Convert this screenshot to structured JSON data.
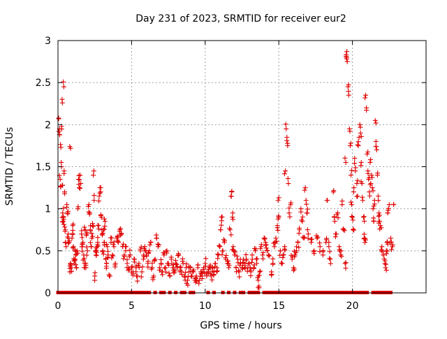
{
  "chart_data": {
    "type": "scatter",
    "title": "Day 231 of 2023, SRMTID for receiver eur2",
    "xlabel": "GPS time / hours",
    "ylabel": "SRMTID / TECUs",
    "xlim": [
      0,
      25
    ],
    "ylim": [
      0,
      3
    ],
    "xticks": [
      0,
      5,
      10,
      15,
      20
    ],
    "xtick_labels": [
      "0",
      "5",
      "10",
      "15",
      "20"
    ],
    "yticks": [
      0,
      0.5,
      1,
      1.5,
      2,
      2.5,
      3
    ],
    "ytick_labels": [
      "0",
      "0.5",
      "1",
      "1.5",
      "2",
      "2.5",
      "3"
    ],
    "grid": true,
    "marker": "+",
    "color": "#e00000",
    "series": [
      {
        "name": "eur2",
        "points": [
          [
            0.05,
            2.07
          ],
          [
            0.1,
            1.95
          ],
          [
            0.12,
            1.88
          ],
          [
            0.15,
            1.35
          ],
          [
            0.18,
            1.27
          ],
          [
            0.2,
            1.73
          ],
          [
            0.22,
            1.55
          ],
          [
            0.25,
            1.98
          ],
          [
            0.28,
            2.3
          ],
          [
            0.3,
            1.28
          ],
          [
            0.32,
            0.95
          ],
          [
            0.35,
            0.85
          ],
          [
            0.38,
            0.9
          ],
          [
            0.4,
            2.45
          ],
          [
            0.42,
            1.45
          ],
          [
            0.45,
            1.2
          ],
          [
            0.5,
            0.75
          ],
          [
            0.55,
            0.55
          ],
          [
            0.6,
            1.05
          ],
          [
            0.65,
            0.95
          ],
          [
            0.7,
            0.7
          ],
          [
            0.75,
            0.6
          ],
          [
            0.8,
            1.74
          ],
          [
            0.82,
            0.25
          ],
          [
            0.85,
            0.35
          ],
          [
            0.9,
            0.3
          ],
          [
            0.95,
            0.65
          ],
          [
            1.0,
            0.8
          ],
          [
            1.05,
            0.55
          ],
          [
            1.1,
            0.35
          ],
          [
            1.15,
            0.4
          ],
          [
            1.2,
            0.45
          ],
          [
            1.25,
            0.3
          ],
          [
            1.3,
            0.5
          ],
          [
            1.35,
            1.0
          ],
          [
            1.4,
            1.35
          ],
          [
            1.45,
            1.25
          ],
          [
            1.5,
            1.4
          ],
          [
            1.55,
            1.3
          ],
          [
            1.6,
            0.7
          ],
          [
            1.65,
            0.55
          ],
          [
            1.7,
            0.6
          ],
          [
            1.75,
            0.45
          ],
          [
            1.8,
            0.35
          ],
          [
            1.85,
            0.75
          ],
          [
            1.9,
            0.3
          ],
          [
            1.95,
            0.7
          ],
          [
            2.0,
            0.5
          ],
          [
            2.1,
            1.05
          ],
          [
            2.15,
            0.95
          ],
          [
            2.2,
            0.75
          ],
          [
            2.25,
            0.55
          ],
          [
            2.3,
            0.65
          ],
          [
            2.35,
            0.8
          ],
          [
            2.4,
            1.4
          ],
          [
            2.45,
            1.1
          ],
          [
            2.5,
            0.2
          ],
          [
            2.55,
            0.5
          ],
          [
            2.6,
            0.45
          ],
          [
            2.65,
            0.55
          ],
          [
            2.7,
            0.6
          ],
          [
            2.75,
            0.8
          ],
          [
            2.8,
            1.15
          ],
          [
            2.85,
            1.25
          ],
          [
            2.9,
            1.2
          ],
          [
            2.95,
            0.9
          ],
          [
            3.0,
            0.7
          ],
          [
            3.05,
            0.5
          ],
          [
            3.1,
            0.75
          ],
          [
            3.15,
            0.6
          ],
          [
            3.2,
            0.85
          ],
          [
            3.25,
            0.4
          ],
          [
            3.3,
            0.35
          ],
          [
            3.35,
            0.55
          ],
          [
            3.4,
            0.45
          ],
          [
            3.5,
            0.2
          ],
          [
            3.6,
            0.6
          ],
          [
            3.7,
            0.45
          ],
          [
            3.8,
            0.55
          ],
          [
            3.9,
            0.35
          ],
          [
            4.0,
            0.65
          ],
          [
            4.1,
            0.6
          ],
          [
            4.2,
            0.75
          ],
          [
            4.3,
            0.7
          ],
          [
            4.4,
            0.55
          ],
          [
            4.5,
            0.45
          ],
          [
            4.6,
            0.5
          ],
          [
            4.7,
            0.35
          ],
          [
            4.8,
            0.3
          ],
          [
            4.9,
            0.45
          ],
          [
            5.0,
            0.3
          ],
          [
            5.1,
            0.25
          ],
          [
            5.2,
            0.4
          ],
          [
            5.3,
            0.3
          ],
          [
            5.4,
            0.2
          ],
          [
            5.5,
            0.35
          ],
          [
            5.6,
            0.5
          ],
          [
            5.7,
            0.25
          ],
          [
            5.8,
            0.4
          ],
          [
            5.9,
            0.55
          ],
          [
            6.0,
            0.45
          ],
          [
            6.1,
            0.35
          ],
          [
            6.2,
            0.5
          ],
          [
            6.3,
            0.6
          ],
          [
            6.4,
            0.3
          ],
          [
            6.5,
            0.2
          ],
          [
            6.6,
            0.4
          ],
          [
            6.7,
            0.65
          ],
          [
            6.8,
            0.55
          ],
          [
            6.9,
            0.3
          ],
          [
            7.0,
            0.35
          ],
          [
            7.1,
            0.25
          ],
          [
            7.2,
            0.45
          ],
          [
            7.3,
            0.3
          ],
          [
            7.4,
            0.5
          ],
          [
            7.5,
            0.35
          ],
          [
            7.6,
            0.2
          ],
          [
            7.7,
            0.4
          ],
          [
            7.8,
            0.3
          ],
          [
            7.9,
            0.25
          ],
          [
            8.0,
            0.35
          ],
          [
            8.1,
            0.3
          ],
          [
            8.2,
            0.45
          ],
          [
            8.3,
            0.3
          ],
          [
            8.4,
            0.25
          ],
          [
            8.5,
            0.35
          ],
          [
            8.6,
            0.2
          ],
          [
            8.7,
            0.3
          ],
          [
            8.8,
            0.15
          ],
          [
            8.9,
            0.25
          ],
          [
            9.0,
            0.3
          ],
          [
            9.1,
            0.2
          ],
          [
            9.2,
            0.25
          ],
          [
            9.3,
            0.15
          ],
          [
            9.4,
            0.2
          ],
          [
            9.5,
            0.3
          ],
          [
            9.6,
            0.15
          ],
          [
            9.7,
            0.25
          ],
          [
            9.8,
            0.2
          ],
          [
            9.9,
            0.3
          ],
          [
            10.0,
            0.35
          ],
          [
            10.1,
            0.2
          ],
          [
            10.2,
            0.25
          ],
          [
            10.3,
            0.3
          ],
          [
            10.4,
            0.2
          ],
          [
            10.5,
            0.3
          ],
          [
            10.6,
            0.25
          ],
          [
            10.7,
            0.35
          ],
          [
            10.8,
            0.3
          ],
          [
            10.9,
            0.45
          ],
          [
            11.0,
            0.55
          ],
          [
            11.05,
            0.75
          ],
          [
            11.1,
            0.9
          ],
          [
            11.2,
            0.5
          ],
          [
            11.3,
            0.6
          ],
          [
            11.4,
            0.4
          ],
          [
            11.5,
            0.35
          ],
          [
            11.6,
            0.3
          ],
          [
            11.7,
            0.75
          ],
          [
            11.75,
            1.15
          ],
          [
            11.8,
            1.2
          ],
          [
            11.85,
            0.9
          ],
          [
            11.9,
            0.55
          ],
          [
            12.0,
            0.45
          ],
          [
            12.1,
            0.3
          ],
          [
            12.2,
            0.4
          ],
          [
            12.3,
            0.25
          ],
          [
            12.4,
            0.35
          ],
          [
            12.5,
            0.3
          ],
          [
            12.6,
            0.4
          ],
          [
            12.7,
            0.35
          ],
          [
            12.8,
            0.4
          ],
          [
            12.9,
            0.3
          ],
          [
            13.0,
            0.35
          ],
          [
            13.1,
            0.25
          ],
          [
            13.2,
            0.4
          ],
          [
            13.3,
            0.3
          ],
          [
            13.4,
            0.5
          ],
          [
            13.5,
            0.35
          ],
          [
            13.6,
            0.15
          ],
          [
            13.65,
            0.08
          ],
          [
            13.7,
            0.25
          ],
          [
            13.8,
            0.55
          ],
          [
            13.9,
            0.45
          ],
          [
            14.0,
            0.65
          ],
          [
            14.1,
            0.6
          ],
          [
            14.2,
            0.5
          ],
          [
            14.3,
            0.45
          ],
          [
            14.5,
            0.25
          ],
          [
            14.6,
            0.35
          ],
          [
            14.7,
            0.55
          ],
          [
            14.8,
            0.65
          ],
          [
            14.9,
            0.8
          ],
          [
            14.95,
            1.1
          ],
          [
            15.0,
            0.9
          ],
          [
            15.1,
            0.5
          ],
          [
            15.2,
            0.35
          ],
          [
            15.3,
            0.45
          ],
          [
            15.4,
            0.55
          ],
          [
            15.45,
            1.45
          ],
          [
            15.5,
            1.95
          ],
          [
            15.55,
            1.85
          ],
          [
            15.6,
            1.75
          ],
          [
            15.65,
            1.3
          ],
          [
            15.7,
            0.95
          ],
          [
            15.8,
            1.05
          ],
          [
            15.9,
            0.4
          ],
          [
            16.0,
            0.3
          ],
          [
            16.1,
            0.45
          ],
          [
            16.2,
            0.5
          ],
          [
            16.3,
            0.6
          ],
          [
            16.4,
            0.75
          ],
          [
            16.5,
            1.0
          ],
          [
            16.6,
            0.85
          ],
          [
            16.7,
            0.65
          ],
          [
            16.8,
            1.25
          ],
          [
            16.85,
            1.1
          ],
          [
            16.9,
            0.95
          ],
          [
            17.0,
            0.7
          ],
          [
            17.2,
            0.6
          ],
          [
            17.4,
            0.5
          ],
          [
            17.6,
            0.65
          ],
          [
            17.8,
            0.55
          ],
          [
            18.0,
            0.45
          ],
          [
            18.2,
            0.6
          ],
          [
            18.3,
            1.1
          ],
          [
            18.4,
            0.55
          ],
          [
            18.5,
            0.4
          ],
          [
            18.7,
            1.2
          ],
          [
            18.8,
            0.85
          ],
          [
            18.9,
            0.7
          ],
          [
            19.0,
            0.95
          ],
          [
            19.1,
            0.55
          ],
          [
            19.2,
            0.45
          ],
          [
            19.3,
            1.05
          ],
          [
            19.4,
            0.75
          ],
          [
            19.5,
            0.35
          ],
          [
            19.55,
            1.55
          ],
          [
            19.6,
            2.8
          ],
          [
            19.62,
            2.87
          ],
          [
            19.65,
            2.75
          ],
          [
            19.7,
            2.45
          ],
          [
            19.75,
            2.35
          ],
          [
            19.8,
            1.95
          ],
          [
            19.85,
            1.75
          ],
          [
            19.9,
            1.4
          ],
          [
            19.95,
            1.05
          ],
          [
            20.0,
            0.9
          ],
          [
            20.05,
            0.75
          ],
          [
            20.1,
            1.25
          ],
          [
            20.15,
            1.6
          ],
          [
            20.2,
            1.45
          ],
          [
            20.3,
            1.3
          ],
          [
            20.35,
            1.15
          ],
          [
            20.4,
            1.75
          ],
          [
            20.45,
            1.85
          ],
          [
            20.5,
            2.0
          ],
          [
            20.55,
            1.9
          ],
          [
            20.6,
            1.55
          ],
          [
            20.65,
            1.3
          ],
          [
            20.7,
            1.1
          ],
          [
            20.75,
            0.9
          ],
          [
            20.8,
            0.65
          ],
          [
            20.85,
            0.6
          ],
          [
            20.9,
            2.35
          ],
          [
            20.95,
            2.2
          ],
          [
            21.0,
            1.65
          ],
          [
            21.05,
            1.45
          ],
          [
            21.1,
            1.35
          ],
          [
            21.15,
            1.2
          ],
          [
            21.2,
            1.55
          ],
          [
            21.25,
            1.3
          ],
          [
            21.3,
            1.4
          ],
          [
            21.35,
            1.25
          ],
          [
            21.4,
            1.0
          ],
          [
            21.45,
            0.85
          ],
          [
            21.5,
            1.1
          ],
          [
            21.55,
            2.05
          ],
          [
            21.6,
            1.8
          ],
          [
            21.65,
            1.7
          ],
          [
            21.7,
            1.4
          ],
          [
            21.75,
            1.15
          ],
          [
            21.8,
            0.95
          ],
          [
            21.85,
            0.85
          ],
          [
            21.9,
            0.8
          ],
          [
            22.0,
            0.55
          ],
          [
            22.1,
            0.45
          ],
          [
            22.2,
            0.35
          ],
          [
            22.25,
            0.3
          ],
          [
            22.3,
            0.5
          ],
          [
            22.35,
            0.6
          ],
          [
            22.4,
            0.95
          ],
          [
            22.5,
            1.05
          ],
          [
            22.6,
            0.65
          ],
          [
            22.7,
            0.55
          ],
          [
            22.8,
            1.05
          ]
        ]
      }
    ],
    "zero_x": [
      0.0,
      0.2,
      0.4,
      0.6,
      0.8,
      1.0,
      1.2,
      1.4,
      1.6,
      1.8,
      2.0,
      2.2,
      2.4,
      2.6,
      2.8,
      3.0,
      3.2,
      3.4,
      3.6,
      3.8,
      4.0,
      4.2,
      4.4,
      4.6,
      4.8,
      5.0,
      5.2,
      5.4,
      5.6,
      5.8,
      6.0,
      6.2,
      6.6,
      7.0,
      7.2,
      7.6,
      8.0,
      8.4,
      8.6,
      9.0,
      9.2,
      10.2,
      10.6,
      11.2,
      11.6,
      12.0,
      12.4,
      12.6,
      13.0,
      13.2,
      13.4,
      13.6,
      14.0,
      14.2,
      14.4,
      14.6,
      14.8,
      15.0,
      15.2,
      15.4,
      15.6,
      15.8,
      16.0,
      16.2,
      16.4,
      16.6,
      16.8,
      17.0,
      17.2,
      17.4,
      17.6,
      17.8,
      18.0,
      18.2,
      18.4,
      18.6,
      18.8,
      19.0,
      19.2,
      19.4,
      19.6,
      19.8,
      20.0,
      20.2,
      20.4,
      20.6,
      20.8,
      21.0,
      21.4,
      21.6,
      21.8,
      22.0,
      22.2,
      22.4,
      22.6
    ]
  }
}
